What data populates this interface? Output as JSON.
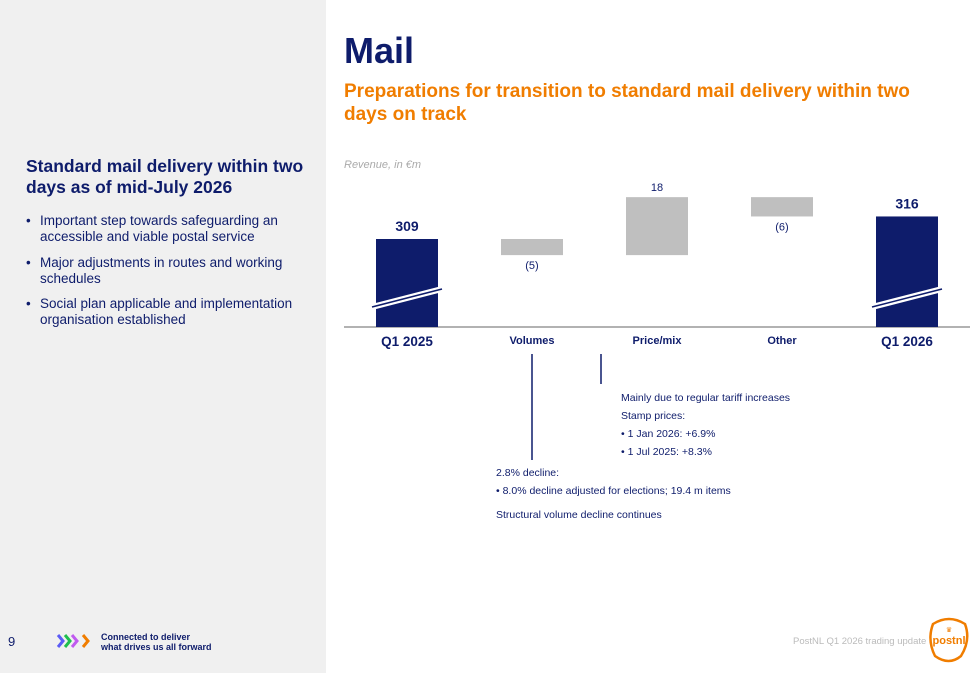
{
  "left": {
    "heading": "Standard mail delivery within two days as of mid-July 2026",
    "bullets": [
      "Important step towards safeguarding an accessible and viable postal service",
      "Major adjustments in routes and working schedules",
      "Social plan applicable and implementation organisation established"
    ],
    "page_number": "9",
    "tagline_1": "Connected to deliver",
    "tagline_2": "what drives us all forward"
  },
  "title": "Mail",
  "subtitle": "Preparations for transition to standard mail delivery within two days on track",
  "footer": {
    "text": "PostNL Q1 2026 trading update",
    "logo": "postnl"
  },
  "notes": {
    "price": [
      "Mainly due to regular tariff increases",
      "Stamp prices:",
      "• 1 Jan 2026: +6.9%",
      "• 1 Jul 2025: +8.3%"
    ],
    "volumes": [
      "2.8% decline:",
      "• 8.0% decline adjusted for elections; 19.4 m items",
      "Structural volume decline continues"
    ]
  },
  "colors": {
    "navy": "#0e1c6b",
    "orange": "#f07d00",
    "grey": "#bfbfbf"
  },
  "chart_data": {
    "type": "waterfall",
    "ylabel": "Revenue, in €m",
    "categories": [
      "Q1 2025",
      "Volumes",
      "Price/mix",
      "Other",
      "Q1 2026"
    ],
    "values": [
      309,
      -5,
      18,
      -6,
      316
    ],
    "labels": [
      "309",
      "(5)",
      "18",
      "(6)",
      "316"
    ],
    "kinds": [
      "total",
      "delta",
      "delta",
      "delta",
      "total"
    ]
  }
}
